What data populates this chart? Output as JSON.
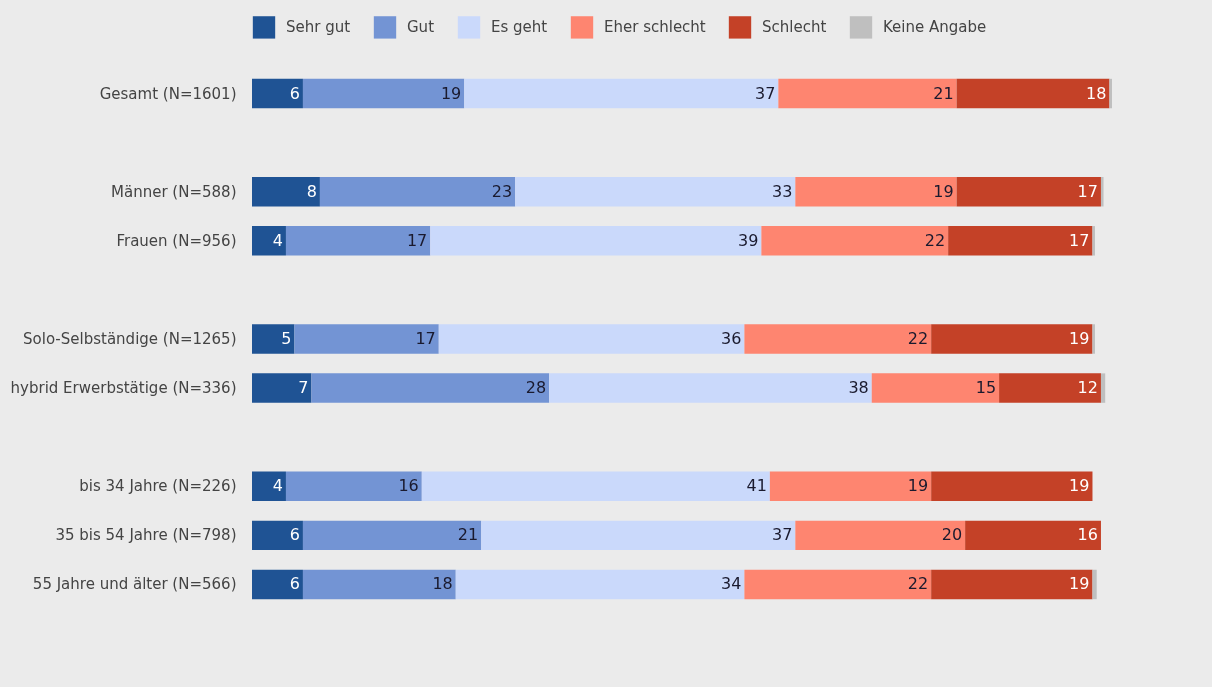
{
  "chart_data": {
    "type": "bar",
    "orientation": "horizontal",
    "stacked": true,
    "legend": "top",
    "categories": [
      "Gesamt (N=1601)",
      null,
      "Männer (N=588)",
      "Frauen (N=956)",
      null,
      "Solo-Selbständige (N=1265)",
      "hybrid Erwerbstätige (N=336)",
      null,
      "bis 34 Jahre (N=226)",
      "35 bis 54 Jahre (N=798)",
      "55 Jahre und älter (N=566)"
    ],
    "series": [
      {
        "name": "Sehr gut",
        "color": "#1f5394",
        "values": [
          6,
          null,
          8,
          4,
          null,
          5,
          7,
          null,
          4,
          6,
          6
        ],
        "value_labels": [
          "6",
          null,
          "8",
          "4",
          null,
          "5",
          "7",
          null,
          "4",
          "6",
          "6"
        ]
      },
      {
        "name": "Gut",
        "color": "#7394d4",
        "values": [
          19,
          null,
          23,
          17,
          null,
          17,
          28,
          null,
          16,
          21,
          18
        ],
        "value_labels": [
          "19",
          null,
          "23",
          "17",
          null,
          "17",
          "28",
          null,
          "16",
          "21",
          "18"
        ]
      },
      {
        "name": "Es geht",
        "color": "#cad9fb",
        "values": [
          37,
          null,
          33,
          39,
          null,
          36,
          38,
          null,
          41,
          37,
          34
        ],
        "value_labels": [
          "37",
          null,
          "33",
          "39",
          null,
          "36",
          "38",
          null,
          "41",
          "37",
          "34"
        ]
      },
      {
        "name": "Eher schlecht",
        "color": "#fe8570",
        "values": [
          21,
          null,
          19,
          22,
          null,
          22,
          15,
          null,
          19,
          20,
          22
        ],
        "value_labels": [
          "21",
          null,
          "19",
          "22",
          null,
          "22",
          "15",
          null,
          "19",
          "20",
          "22"
        ]
      },
      {
        "name": "Schlecht",
        "color": "#c44127",
        "values": [
          18,
          null,
          17,
          17,
          null,
          19,
          12,
          null,
          19,
          16,
          19
        ],
        "value_labels": [
          "18",
          null,
          "17",
          "17",
          null,
          "19",
          "12",
          null,
          "19",
          "16",
          "19"
        ]
      },
      {
        "name": "Keine Angabe",
        "color": "#bfbfbf",
        "values": [
          0.3,
          null,
          0.3,
          0.3,
          null,
          0.3,
          0.5,
          null,
          null,
          null,
          0.5
        ],
        "value_labels": [
          null,
          null,
          null,
          null,
          null,
          null,
          null,
          null,
          null,
          null,
          null
        ]
      }
    ]
  }
}
